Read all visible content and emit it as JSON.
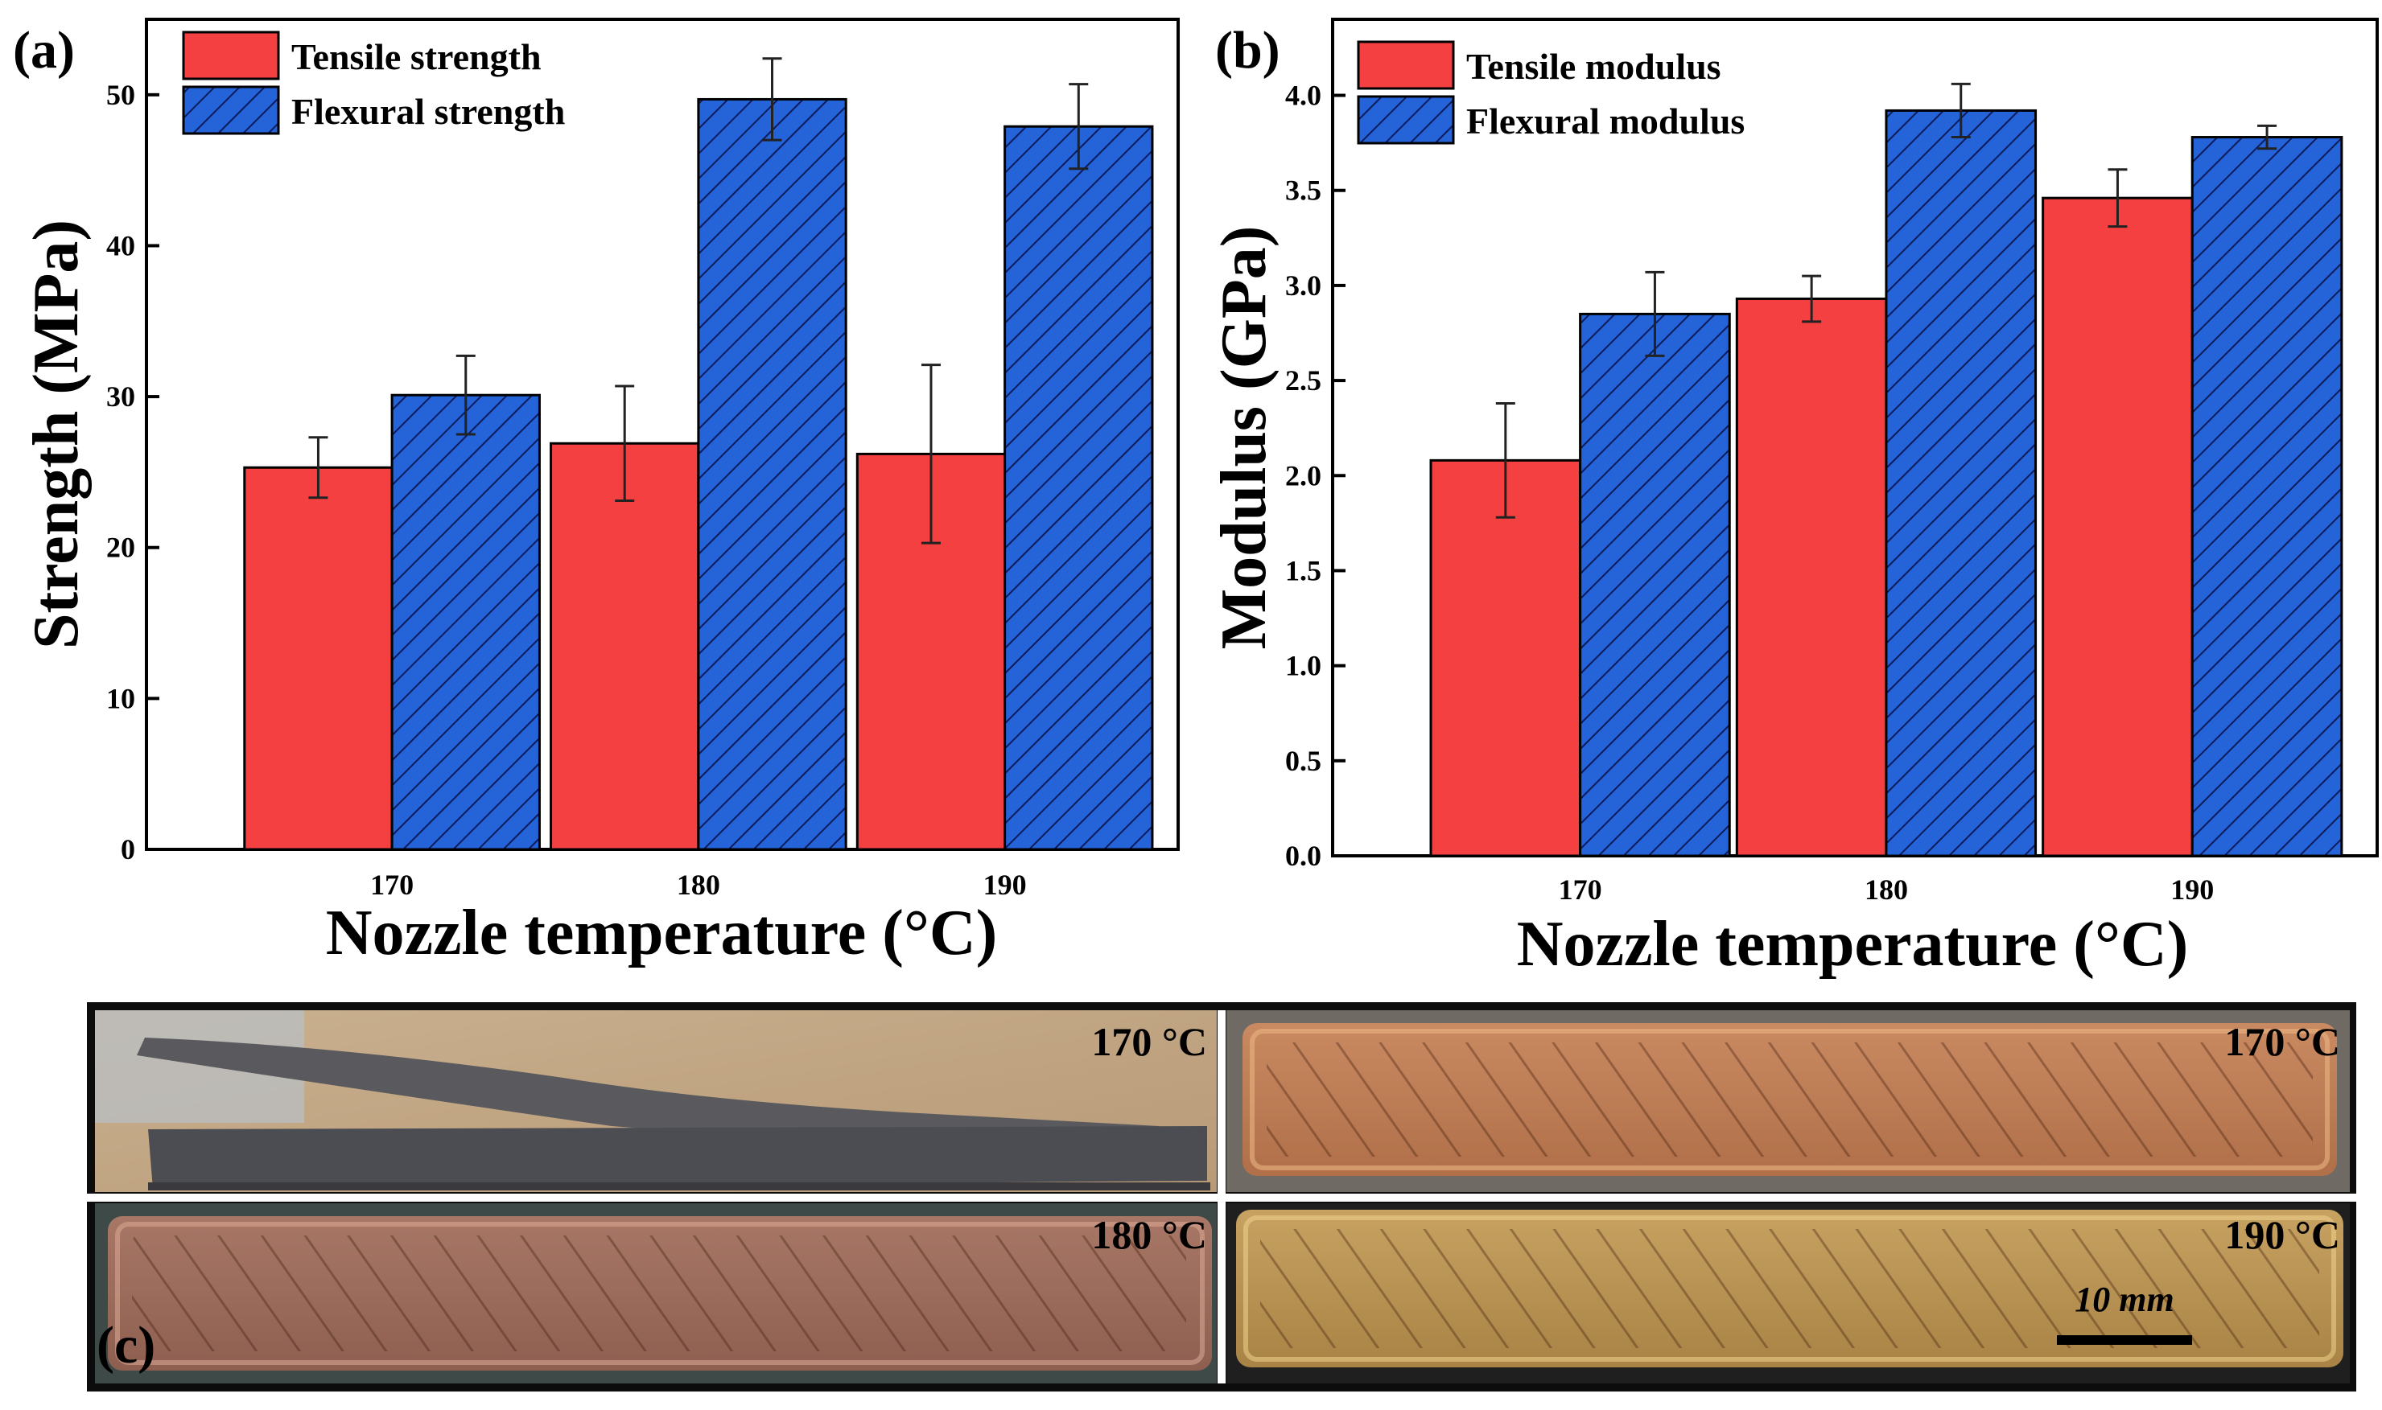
{
  "colors": {
    "tensile": "#f44040",
    "flexural": "#2563d8",
    "hatch": "#0b1b5c",
    "axis": "#000000"
  },
  "chart_data": [
    {
      "panel": "(a)",
      "type": "bar",
      "xlabel": "Nozzle temperature (°C)",
      "ylabel": "Strength (MPa)",
      "ylim": [
        0,
        55
      ],
      "yticks": [
        0,
        10,
        20,
        30,
        40,
        50
      ],
      "categories": [
        "170",
        "180",
        "190"
      ],
      "series": [
        {
          "name": "Tensile strength",
          "values": [
            25.3,
            26.9,
            26.2
          ],
          "errors": [
            2.0,
            3.8,
            5.9
          ],
          "pattern": "solid"
        },
        {
          "name": "Flexural strength",
          "values": [
            30.1,
            49.7,
            47.9
          ],
          "errors": [
            2.6,
            2.7,
            2.8
          ],
          "pattern": "hatched"
        }
      ],
      "legend_position": "top-left"
    },
    {
      "panel": "(b)",
      "type": "bar",
      "xlabel": "Nozzle temperature (°C)",
      "ylabel": "Modulus (GPa)",
      "ylim": [
        0,
        4.4
      ],
      "yticks": [
        0.0,
        0.5,
        1.0,
        1.5,
        2.0,
        2.5,
        3.0,
        3.5,
        4.0
      ],
      "categories": [
        "170",
        "180",
        "190"
      ],
      "series": [
        {
          "name": "Tensile modulus",
          "values": [
            2.08,
            2.93,
            3.46
          ],
          "errors": [
            0.3,
            0.12,
            0.15
          ],
          "pattern": "solid"
        },
        {
          "name": "Flexural modulus",
          "values": [
            2.85,
            3.92,
            3.78
          ],
          "errors": [
            0.22,
            0.14,
            0.06
          ],
          "pattern": "hatched"
        }
      ],
      "legend_position": "top-left"
    }
  ],
  "photos": {
    "panel": "(c)",
    "labels": [
      "170 °C",
      "170 °C",
      "180 °C",
      "190 °C"
    ],
    "scale_bar": "10 mm"
  }
}
